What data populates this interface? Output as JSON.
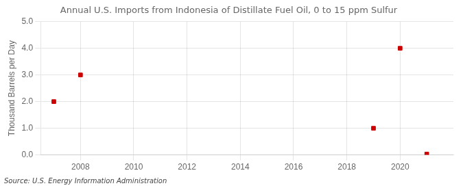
{
  "chart_data": {
    "type": "scatter",
    "title": "Annual U.S. Imports from Indonesia of Distillate Fuel Oil, 0 to 15 ppm Sulfur",
    "ylabel": "Thousand Barrels per Day",
    "source": "Source: U.S. Energy Information Administration",
    "x": [
      2007,
      2008,
      2019,
      2020,
      2021
    ],
    "values": [
      2.0,
      3.0,
      1.0,
      4.0,
      0.03
    ],
    "color": "#cc0000",
    "marker": "square",
    "xlim": [
      2006.5,
      2022
    ],
    "xticks": [
      2008,
      2010,
      2012,
      2014,
      2016,
      2018,
      2020
    ],
    "ylim": [
      0,
      5.0
    ],
    "yticks": [
      {
        "value": 0.0,
        "label": "0.0"
      },
      {
        "value": 1.0,
        "label": "1.0"
      },
      {
        "value": 2.0,
        "label": "2.0"
      },
      {
        "value": 3.0,
        "label": "3.0"
      },
      {
        "value": 4.0,
        "label": "4.0"
      },
      {
        "value": 5.0,
        "label": "5.0"
      }
    ],
    "grid": true
  }
}
